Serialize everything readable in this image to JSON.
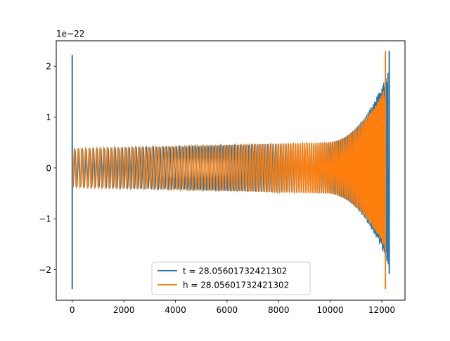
{
  "chart_data": {
    "type": "line",
    "title": "",
    "xlabel": "",
    "ylabel": "",
    "xlim": [
      -620,
      12900
    ],
    "ylim": [
      -2.6,
      2.5
    ],
    "y_offset_text": "1e−22",
    "x_ticks": [
      0,
      2000,
      4000,
      6000,
      8000,
      10000,
      12000
    ],
    "x_tick_labels": [
      "0",
      "2000",
      "4000",
      "6000",
      "8000",
      "10000",
      "12000"
    ],
    "y_ticks": [
      -2,
      -1,
      0,
      1,
      2
    ],
    "y_tick_labels": [
      "−2",
      "−1",
      "0",
      "1",
      "2"
    ],
    "grid": false,
    "legend": {
      "position": "lower-center",
      "entries": [
        {
          "label": "t = 28.05601732421302",
          "color": "#1f77b4"
        },
        {
          "label": "h = 28.05601732421302",
          "color": "#ff7f0e"
        }
      ]
    },
    "series": [
      {
        "color": "#1f77b4",
        "description_values": {
          "spikes": [
            {
              "x": 0,
              "min": -2.38,
              "max": 2.22
            },
            {
              "x": 12290,
              "min": -2.08,
              "max": 2.3
            }
          ],
          "envelope": {
            "x_start": 20,
            "x_end": 12250,
            "amp_start": 0.36,
            "amp_mid": 0.5,
            "amp_end": 1.9
          },
          "chirp_end": 12250
        }
      },
      {
        "color": "#ff7f0e",
        "description_values": {
          "spikes": [
            {
              "x": 12140,
              "min": -2.38,
              "max": 2.3
            }
          ],
          "envelope": {
            "x_start": 20,
            "x_end": 12150,
            "amp_start": 0.38,
            "amp_mid": 0.5,
            "amp_end": 1.6
          },
          "chirp_end": 12150
        }
      }
    ]
  }
}
